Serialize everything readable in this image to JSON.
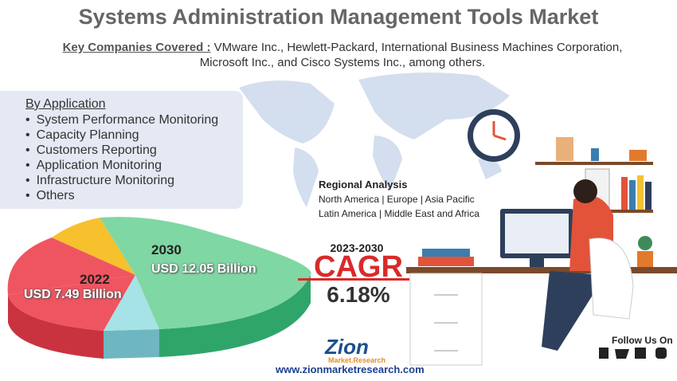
{
  "header": {
    "title": "Systems Administration Management Tools Market",
    "companies_label": "Key Companies Covered :",
    "companies": "VMware Inc., Hewlett-Packard, International Business Machines Corporation, Microsoft Inc., and Cisco Systems Inc., among others."
  },
  "segments": {
    "heading": "By Application",
    "items": [
      "System Performance Monitoring",
      "Capacity Planning",
      "Customers Reporting",
      "Application Monitoring",
      "Infrastructure Monitoring",
      "Others"
    ]
  },
  "regional": {
    "heading": "Regional Analysis",
    "line1": "North America | Europe | Asia Pacific",
    "line2": "Latin America | Middle East and Africa"
  },
  "cagr": {
    "period": "2023-2030",
    "label": "CAGR",
    "value": "6.18%"
  },
  "market": {
    "year_end": "2030",
    "value_end": "USD 12.05 Billion",
    "year_start": "2022",
    "value_start": "USD 7.49 Billion"
  },
  "footer": {
    "brand": "Zion",
    "brand_sub": "Market.Research",
    "website": "www.zionmarketresearch.com",
    "follow": "Follow Us On"
  }
}
